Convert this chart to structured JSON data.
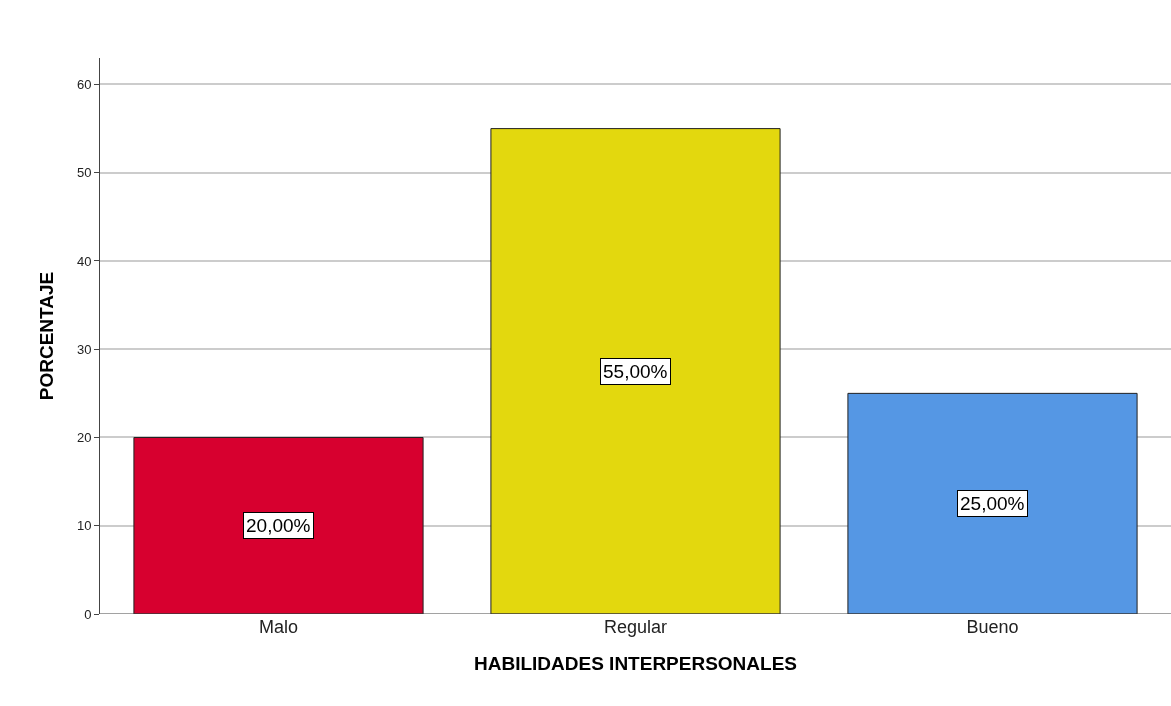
{
  "chart_data": {
    "type": "bar",
    "xlabel": "HABILIDADES INTERPERSONALES",
    "ylabel": "PORCENTAJE",
    "categories": [
      "Malo",
      "Regular",
      "Bueno"
    ],
    "values": [
      20,
      55,
      25
    ],
    "colors": [
      "#d7002f",
      "#e3d80e",
      "#5597e4"
    ],
    "value_labels": [
      "20,00%",
      "55,00%",
      "25,00%"
    ],
    "ylim": [
      0,
      63
    ],
    "yticks": [
      0,
      10,
      20,
      30,
      40,
      50,
      60
    ],
    "grid": "y"
  }
}
